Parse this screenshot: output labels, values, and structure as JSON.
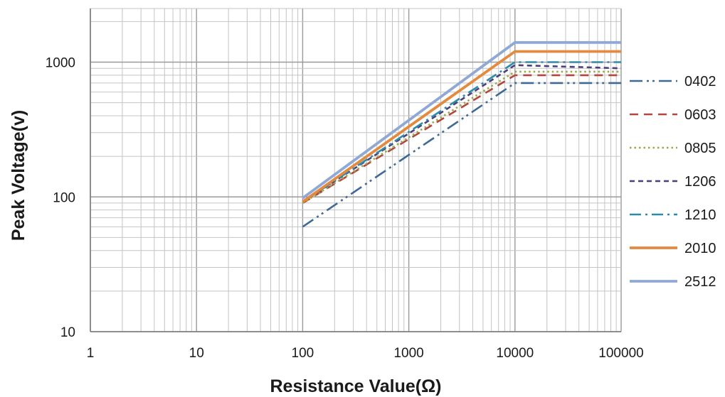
{
  "chart_data": {
    "type": "line",
    "title": "",
    "xlabel": "Resistance Value(Ω)",
    "ylabel": "Peak Voltage(v)",
    "x_scale": "log",
    "y_scale": "log",
    "xlim": [
      1,
      100000
    ],
    "ylim": [
      10,
      2500
    ],
    "x_ticks": [
      "1",
      "10",
      "100",
      "1000",
      "10000",
      "100000"
    ],
    "y_ticks": [
      "10",
      "100",
      "1000"
    ],
    "grid": true,
    "legend_position": "right",
    "series": [
      {
        "name": "0402",
        "color": "#3F6A96",
        "dash": "dash-dot-dot",
        "points": [
          [
            100,
            60
          ],
          [
            10000,
            700
          ],
          [
            100000,
            700
          ]
        ]
      },
      {
        "name": "0603",
        "color": "#B5453F",
        "dash": "dash",
        "points": [
          [
            100,
            90
          ],
          [
            10000,
            800
          ],
          [
            100000,
            800
          ]
        ]
      },
      {
        "name": "0805",
        "color": "#98A945",
        "dash": "dot",
        "points": [
          [
            100,
            90
          ],
          [
            10000,
            850
          ],
          [
            100000,
            850
          ]
        ]
      },
      {
        "name": "1206",
        "color": "#4E3F7A",
        "dash": "short-dash",
        "points": [
          [
            100,
            92
          ],
          [
            10000,
            950
          ],
          [
            100000,
            900
          ]
        ]
      },
      {
        "name": "1210",
        "color": "#2E8CA8",
        "dash": "dash-dot",
        "points": [
          [
            100,
            92
          ],
          [
            10000,
            1000
          ],
          [
            100000,
            1000
          ]
        ]
      },
      {
        "name": "2010",
        "color": "#E48A3E",
        "dash": "solid",
        "points": [
          [
            100,
            92
          ],
          [
            10000,
            1200
          ],
          [
            100000,
            1200
          ]
        ]
      },
      {
        "name": "2512",
        "color": "#8FA9D4",
        "dash": "solid",
        "points": [
          [
            100,
            98
          ],
          [
            10000,
            1400
          ],
          [
            100000,
            1400
          ]
        ]
      }
    ]
  }
}
